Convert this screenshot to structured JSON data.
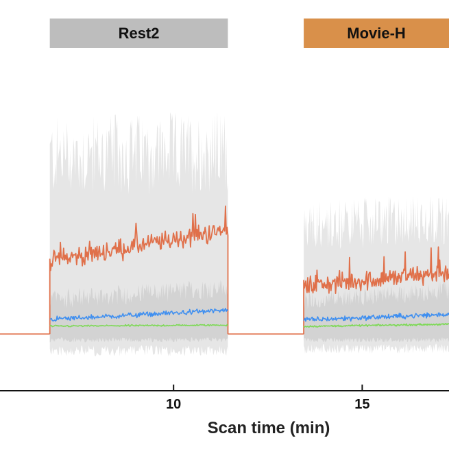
{
  "chart_data": {
    "type": "line",
    "xlabel": "Scan time (min)",
    "ylabel": "",
    "xlim": [
      5.4,
      17.3
    ],
    "ylim": [
      -0.08,
      1.0
    ],
    "x_ticks": [
      {
        "value": 10,
        "label": "10"
      },
      {
        "value": 15,
        "label": "15"
      }
    ],
    "blocks": [
      {
        "label": "Rest2",
        "x_start": 6.72,
        "x_end": 11.44,
        "color": "#bdbdbd"
      },
      {
        "label": "Movie-H",
        "x_start": 13.45,
        "x_end": 17.3,
        "color": "#d9904a"
      }
    ],
    "segments": [
      {
        "x_start": 6.72,
        "x_end": 11.44,
        "band_outer": [
          0.08,
          0.78
        ],
        "band_inner": [
          0.03,
          0.16
        ],
        "series_levels": {
          "orange": [
            0.26,
            0.37
          ],
          "blue": [
            0.052,
            0.085
          ],
          "green": [
            0.028,
            0.032
          ]
        }
      },
      {
        "x_start": 13.45,
        "x_end": 17.3,
        "band_outer": [
          0.07,
          0.48
        ],
        "band_inner": [
          0.03,
          0.15
        ],
        "series_levels": {
          "orange": [
            0.17,
            0.22
          ],
          "blue": [
            0.05,
            0.07
          ],
          "green": [
            0.027,
            0.035
          ]
        }
      }
    ],
    "series": [
      {
        "key": "orange",
        "color": "#e0704a"
      },
      {
        "key": "blue",
        "color": "#3f8ff0"
      },
      {
        "key": "green",
        "color": "#7ed957"
      }
    ],
    "baseline": 0.0,
    "colors": {
      "band_outer": "#e6e6e6",
      "band_inner": "#cfcfcf",
      "axis": "#111111",
      "baseline_line": "#e0704a"
    }
  }
}
